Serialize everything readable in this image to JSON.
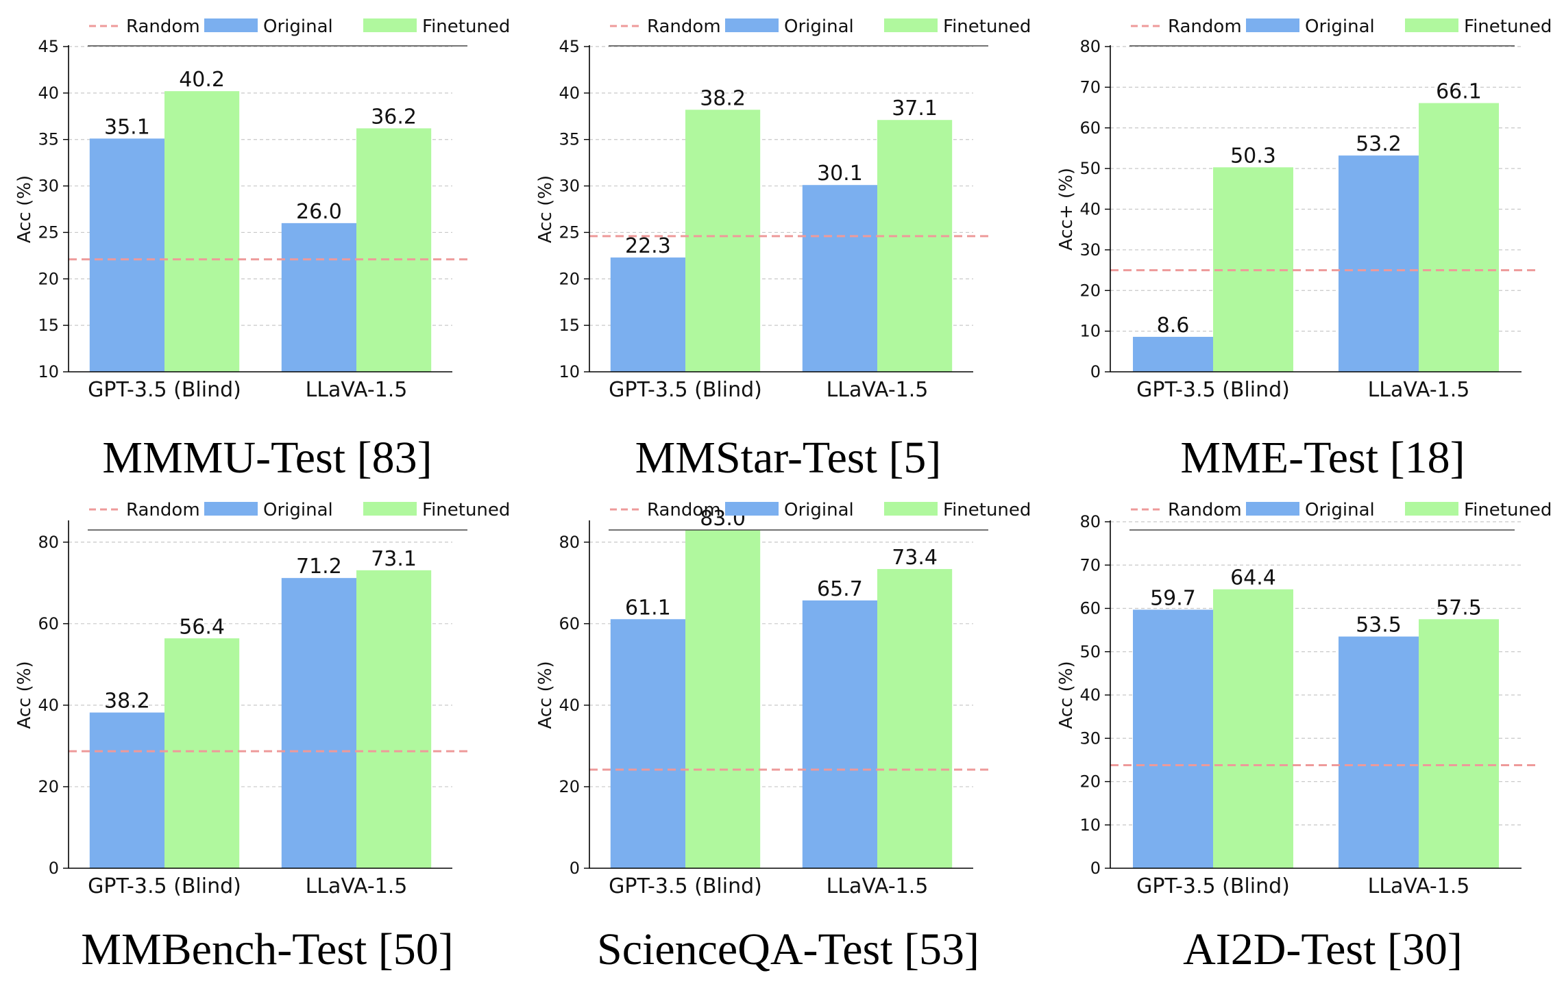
{
  "legend": {
    "random_label": "Random",
    "original_label": "Original",
    "finetuned_label": "Finetuned"
  },
  "colors": {
    "original": "#7bafef",
    "finetuned": "#b0f89e",
    "random": "#ee9a9a"
  },
  "chart_data": [
    {
      "type": "bar",
      "title": "MMMU-Test [83]",
      "ylabel": "Acc (%)",
      "ylim": [
        10,
        45
      ],
      "yticks": [
        10,
        15,
        20,
        25,
        30,
        35,
        40,
        45
      ],
      "categories": [
        "GPT-3.5 (Blind)",
        "LLaVA-1.5"
      ],
      "series": [
        {
          "name": "Original",
          "values": [
            35.1,
            26.0
          ]
        },
        {
          "name": "Finetuned",
          "values": [
            40.2,
            36.2
          ]
        }
      ],
      "random_baseline": 22.1,
      "value_labels": [
        [
          "35.1",
          "26.0"
        ],
        [
          "40.2",
          "36.2"
        ]
      ],
      "grid": true,
      "legend_position": "top"
    },
    {
      "type": "bar",
      "title": "MMStar-Test [5]",
      "ylabel": "Acc (%)",
      "ylim": [
        10,
        45
      ],
      "yticks": [
        10,
        15,
        20,
        25,
        30,
        35,
        40,
        45
      ],
      "categories": [
        "GPT-3.5 (Blind)",
        "LLaVA-1.5"
      ],
      "series": [
        {
          "name": "Original",
          "values": [
            22.3,
            30.1
          ]
        },
        {
          "name": "Finetuned",
          "values": [
            38.2,
            37.1
          ]
        }
      ],
      "random_baseline": 24.6,
      "value_labels": [
        [
          "22.3",
          "30.1"
        ],
        [
          "38.2",
          "37.1"
        ]
      ],
      "grid": true,
      "legend_position": "top"
    },
    {
      "type": "bar",
      "title": "MME-Test [18]",
      "ylabel": "Acc+ (%)",
      "ylim": [
        0,
        80
      ],
      "yticks": [
        0,
        10,
        20,
        30,
        40,
        50,
        60,
        70,
        80
      ],
      "categories": [
        "GPT-3.5 (Blind)",
        "LLaVA-1.5"
      ],
      "series": [
        {
          "name": "Original",
          "values": [
            8.6,
            53.2
          ]
        },
        {
          "name": "Finetuned",
          "values": [
            50.3,
            66.1
          ]
        }
      ],
      "random_baseline": 25.0,
      "value_labels": [
        [
          "8.6",
          "53.2"
        ],
        [
          "50.3",
          "66.1"
        ]
      ],
      "grid": true,
      "legend_position": "top"
    },
    {
      "type": "bar",
      "title": "MMBench-Test [50]",
      "ylabel": "Acc (%)",
      "ylim": [
        0,
        85
      ],
      "yticks": [
        0,
        20,
        40,
        60,
        80
      ],
      "categories": [
        "GPT-3.5 (Blind)",
        "LLaVA-1.5"
      ],
      "series": [
        {
          "name": "Original",
          "values": [
            38.2,
            71.2
          ]
        },
        {
          "name": "Finetuned",
          "values": [
            56.4,
            73.1
          ]
        }
      ],
      "random_baseline": 28.7,
      "value_labels": [
        [
          "38.2",
          "71.2"
        ],
        [
          "56.4",
          "73.1"
        ]
      ],
      "grid": true,
      "legend_position": "top"
    },
    {
      "type": "bar",
      "title": "ScienceQA-Test [53]",
      "ylabel": "Acc (%)",
      "ylim": [
        0,
        85
      ],
      "yticks": [
        0,
        20,
        40,
        60,
        80
      ],
      "categories": [
        "GPT-3.5 (Blind)",
        "LLaVA-1.5"
      ],
      "series": [
        {
          "name": "Original",
          "values": [
            61.1,
            65.7
          ]
        },
        {
          "name": "Finetuned",
          "values": [
            83.0,
            73.4
          ]
        }
      ],
      "random_baseline": 24.2,
      "value_labels": [
        [
          "61.1",
          "65.7"
        ],
        [
          "83.0",
          "73.4"
        ]
      ],
      "grid": true,
      "legend_position": "top"
    },
    {
      "type": "bar",
      "title": "AI2D-Test [30]",
      "ylabel": "Acc (%)",
      "ylim": [
        0,
        80
      ],
      "yticks": [
        0,
        10,
        20,
        30,
        40,
        50,
        60,
        70,
        80
      ],
      "categories": [
        "GPT-3.5 (Blind)",
        "LLaVA-1.5"
      ],
      "series": [
        {
          "name": "Original",
          "values": [
            59.7,
            53.5
          ]
        },
        {
          "name": "Finetuned",
          "values": [
            64.4,
            57.5
          ]
        }
      ],
      "random_baseline": 23.8,
      "value_labels": [
        [
          "59.7",
          "53.5"
        ],
        [
          "64.4",
          "57.5"
        ]
      ],
      "grid": true,
      "legend_position": "top"
    }
  ]
}
